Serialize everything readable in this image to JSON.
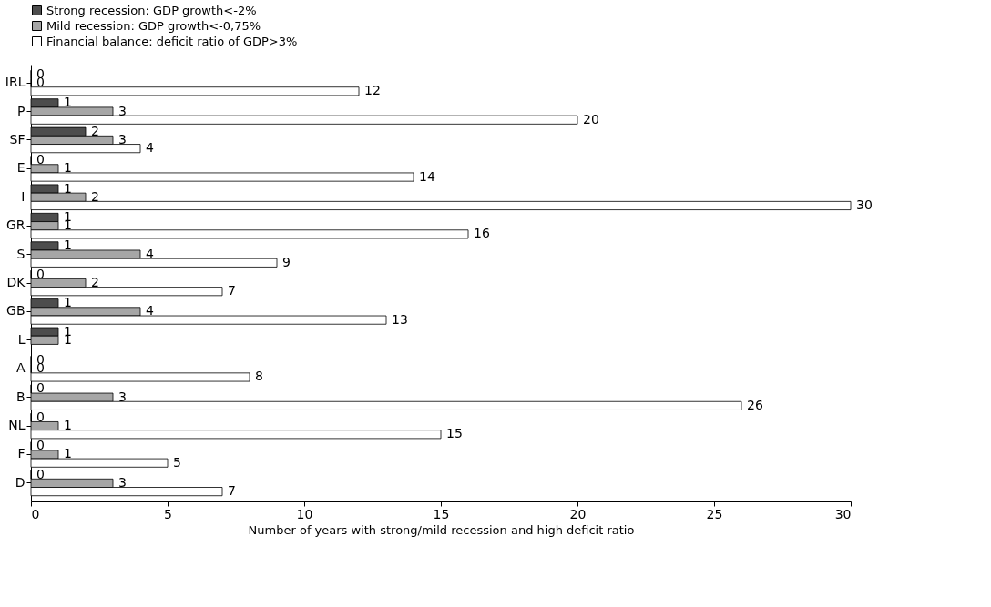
{
  "chart_data": {
    "type": "bar",
    "orientation": "horizontal",
    "xlabel": "Number of years with strong/mild recession and high deficit ratio",
    "categories": [
      "IRL",
      "P",
      "SF",
      "E",
      "I",
      "GR",
      "S",
      "DK",
      "GB",
      "L",
      "A",
      "B",
      "NL",
      "F",
      "D"
    ],
    "series": [
      {
        "name": "Strong recession: GDP growth<-2%",
        "color": "#4d4d4d",
        "values": [
          0,
          1,
          2,
          0,
          1,
          1,
          1,
          0,
          1,
          1,
          0,
          0,
          0,
          0,
          0
        ],
        "value_labels": [
          "0",
          "1",
          "2",
          "0",
          "1",
          "1",
          "1",
          "0",
          "1",
          "1",
          "0",
          "0",
          "0",
          "0",
          "0"
        ]
      },
      {
        "name": "Mild recession: GDP growth<-0,75%",
        "color": "#a6a6a6",
        "values": [
          0,
          3,
          3,
          1,
          2,
          1,
          4,
          2,
          4,
          1,
          0,
          3,
          1,
          1,
          3
        ],
        "value_labels": [
          "0",
          "3",
          "3",
          "1",
          "2",
          "1",
          "4",
          "2",
          "4",
          "1",
          "0",
          "3",
          "1",
          "1",
          "3"
        ]
      },
      {
        "name": "Financial balance: deficit ratio of GDP>3%",
        "color": "#ffffff",
        "values": [
          12,
          20,
          4,
          14,
          30,
          16,
          9,
          7,
          13,
          null,
          8,
          26,
          15,
          5,
          7
        ],
        "value_labels": [
          "12",
          "20",
          "4",
          "14",
          "30",
          "16",
          "9",
          "7",
          "13",
          null,
          "8",
          "26",
          "15",
          "5",
          "7"
        ]
      }
    ],
    "xlim": [
      0,
      30
    ],
    "xticks": [
      0,
      5,
      10,
      15,
      20,
      25,
      30
    ],
    "grid": false,
    "legend": "top"
  }
}
